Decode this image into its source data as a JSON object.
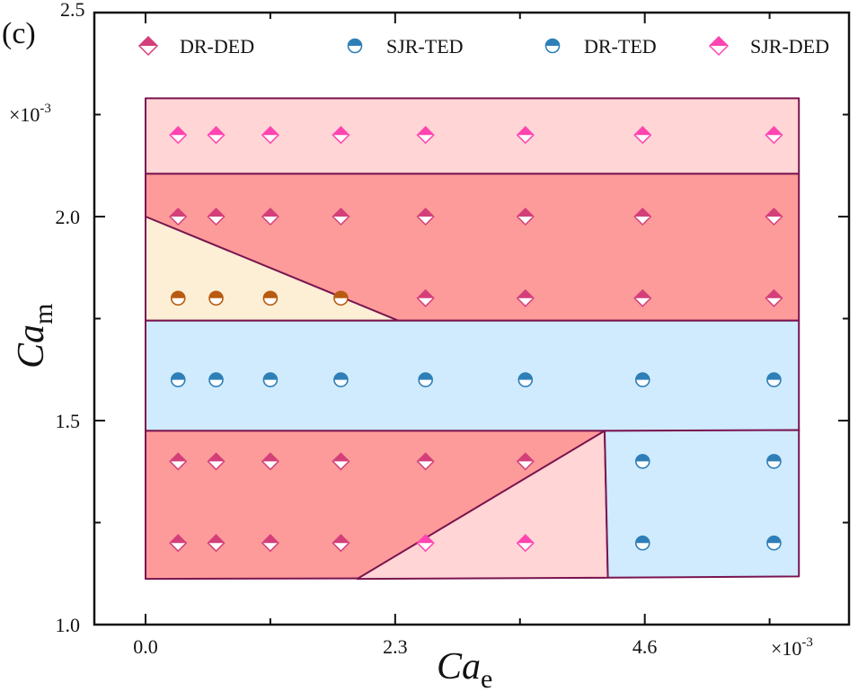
{
  "chart_data": {
    "type": "scatter",
    "panel_label": "(c)",
    "title": "",
    "xlabel": {
      "main": "Ca",
      "sub": "e"
    },
    "ylabel": {
      "main": "Ca",
      "sub": "m"
    },
    "x_multiplier": "×10",
    "x_multiplier_exp": "-3",
    "y_multiplier": "×10",
    "y_multiplier_exp": "-3",
    "xlim": [
      -0.3,
      6.3
    ],
    "ylim": [
      1.0,
      2.5
    ],
    "x_ticks": [
      0.0,
      2.3,
      4.6
    ],
    "x_tick_labels": [
      "0.0",
      "2.3",
      "4.6"
    ],
    "x_minor_ticks": [
      1.15,
      3.45,
      5.75
    ],
    "y_ticks": [
      1.0,
      1.5,
      2.0,
      2.5
    ],
    "y_tick_labels": [
      "1.0",
      "1.5",
      "2.0",
      "2.5"
    ],
    "y_minor_ticks": [
      1.25,
      1.75,
      2.25
    ],
    "grid": false,
    "legend_position": "top",
    "legend": [
      {
        "label": "DR-DED",
        "marker": "diamond-half",
        "color": "#d43f7a"
      },
      {
        "label": "SJR-TED",
        "marker": "circle-half",
        "color": "#2e7fb8"
      },
      {
        "label": "DR-TED",
        "marker": "circle-half",
        "color": "#2e7fb8"
      },
      {
        "label": "SJR-DED",
        "marker": "diamond-half",
        "color": "#ff45b0"
      }
    ],
    "regions": [
      {
        "name": "SJR-DED upper band",
        "color": "#ffd5d6",
        "polygon": [
          [
            0,
            2.29
          ],
          [
            6.02,
            2.29
          ],
          [
            6.02,
            2.105
          ],
          [
            0,
            2.105
          ]
        ]
      },
      {
        "name": "DR-DED upper band",
        "color": "#fc9b99",
        "polygon": [
          [
            0,
            2.105
          ],
          [
            6.02,
            2.105
          ],
          [
            6.02,
            1.745
          ],
          [
            0,
            1.745
          ]
        ]
      },
      {
        "name": "Brown region",
        "color": "#fcefd5",
        "polygon": [
          [
            0,
            2.0
          ],
          [
            2.33,
            1.745
          ],
          [
            0,
            1.745
          ]
        ]
      },
      {
        "name": "TED middle band",
        "color": "#cfebfd",
        "polygon": [
          [
            0,
            1.745
          ],
          [
            6.02,
            1.745
          ],
          [
            6.02,
            1.475
          ],
          [
            0,
            1.475
          ]
        ]
      },
      {
        "name": "DR-DED lower region",
        "color": "#fc9b99",
        "polygon": [
          [
            0,
            1.475
          ],
          [
            4.23,
            1.475
          ],
          [
            4.23,
            1.115
          ],
          [
            0,
            1.112
          ]
        ]
      },
      {
        "name": "SJR-DED lower triangle",
        "color": "#ffd5d6",
        "polygon": [
          [
            1.95,
            1.112
          ],
          [
            4.23,
            1.475
          ],
          [
            4.26,
            1.115
          ]
        ]
      },
      {
        "name": "DR-TED lower right",
        "color": "#cfebfd",
        "polygon": [
          [
            4.23,
            1.475
          ],
          [
            6.02,
            1.477
          ],
          [
            6.02,
            1.118
          ],
          [
            4.26,
            1.115
          ]
        ]
      }
    ],
    "region_edge_color": "#7a1450",
    "marker_colors": {
      "sjr_ded": "#ff45b0",
      "dr_ded": "#d43f7a",
      "ted_blue": "#2e7fb8",
      "brown": "#b85a10"
    },
    "series": [
      {
        "name": "SJR-DED",
        "marker": "diamond-half",
        "color": "#ff45b0",
        "points": [
          [
            0.3,
            2.2
          ],
          [
            0.65,
            2.2
          ],
          [
            1.15,
            2.2
          ],
          [
            1.8,
            2.2
          ],
          [
            2.58,
            2.2
          ],
          [
            3.5,
            2.2
          ],
          [
            4.58,
            2.2
          ],
          [
            5.79,
            2.2
          ],
          [
            2.58,
            1.2
          ],
          [
            3.5,
            1.2
          ]
        ]
      },
      {
        "name": "DR-DED",
        "marker": "diamond-half",
        "color": "#d43f7a",
        "points": [
          [
            0.3,
            2.0
          ],
          [
            0.65,
            2.0
          ],
          [
            1.15,
            2.0
          ],
          [
            1.8,
            2.0
          ],
          [
            2.58,
            2.0
          ],
          [
            3.5,
            2.0
          ],
          [
            4.58,
            2.0
          ],
          [
            5.79,
            2.0
          ],
          [
            2.58,
            1.8
          ],
          [
            3.5,
            1.8
          ],
          [
            4.58,
            1.8
          ],
          [
            5.79,
            1.8
          ],
          [
            0.3,
            1.4
          ],
          [
            0.65,
            1.4
          ],
          [
            1.15,
            1.4
          ],
          [
            1.8,
            1.4
          ],
          [
            2.58,
            1.4
          ],
          [
            3.5,
            1.4
          ],
          [
            0.3,
            1.2
          ],
          [
            0.65,
            1.2
          ],
          [
            1.15,
            1.2
          ],
          [
            1.8,
            1.2
          ]
        ]
      },
      {
        "name": "Brown",
        "marker": "circle-half",
        "color": "#b85a10",
        "points": [
          [
            0.3,
            1.8
          ],
          [
            0.65,
            1.8
          ],
          [
            1.15,
            1.8
          ],
          [
            1.8,
            1.8
          ]
        ]
      },
      {
        "name": "SJR-TED",
        "marker": "circle-half",
        "color": "#2e7fb8",
        "points": [
          [
            0.3,
            1.6
          ],
          [
            0.65,
            1.6
          ],
          [
            1.15,
            1.6
          ],
          [
            1.8,
            1.6
          ],
          [
            2.58,
            1.6
          ],
          [
            3.5,
            1.6
          ],
          [
            4.58,
            1.6
          ],
          [
            5.79,
            1.6
          ]
        ]
      },
      {
        "name": "DR-TED",
        "marker": "circle-half",
        "color": "#2e7fb8",
        "points": [
          [
            4.58,
            1.4
          ],
          [
            5.79,
            1.4
          ],
          [
            4.58,
            1.2
          ],
          [
            5.79,
            1.2
          ]
        ]
      }
    ]
  }
}
